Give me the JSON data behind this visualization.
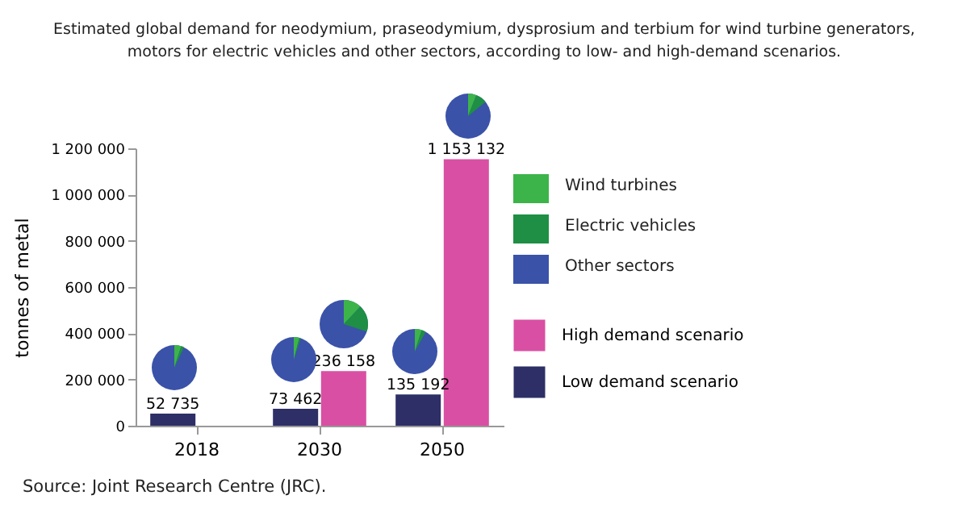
{
  "chart_data": {
    "type": "bar",
    "title": "Estimated global demand for neodymium, praseodymium, dysprosium and terbium for wind turbine generators, motors for electric vehicles and other sectors, according to low- and high-demand scenarios.",
    "ylabel": "tonnes of metal",
    "categories": [
      "2018",
      "2030",
      "2050"
    ],
    "series": [
      {
        "name": "High demand scenario",
        "color": "#d94fa3",
        "values": [
          null,
          236158,
          1153132
        ]
      },
      {
        "name": "Low demand scenario",
        "color": "#2d2f66",
        "values": [
          52735,
          73462,
          135192
        ]
      }
    ],
    "ylim": [
      0,
      1200000
    ],
    "yticks": [
      {
        "value": 0,
        "label": "0"
      },
      {
        "value": 200000,
        "label": "200 000"
      },
      {
        "value": 400000,
        "label": "400 000"
      },
      {
        "value": 600000,
        "label": "600 000"
      },
      {
        "value": 800000,
        "label": "800 000"
      },
      {
        "value": 1000000,
        "label": "1 000 000"
      },
      {
        "value": 1200000,
        "label": "1 200 000"
      }
    ],
    "data_labels": true,
    "legend": "right",
    "grid": false,
    "annotations": [
      "Wind turbines",
      "Electric vehicles",
      "Other sectors",
      "Source: Joint Research Centre (JRC)."
    ]
  }
}
